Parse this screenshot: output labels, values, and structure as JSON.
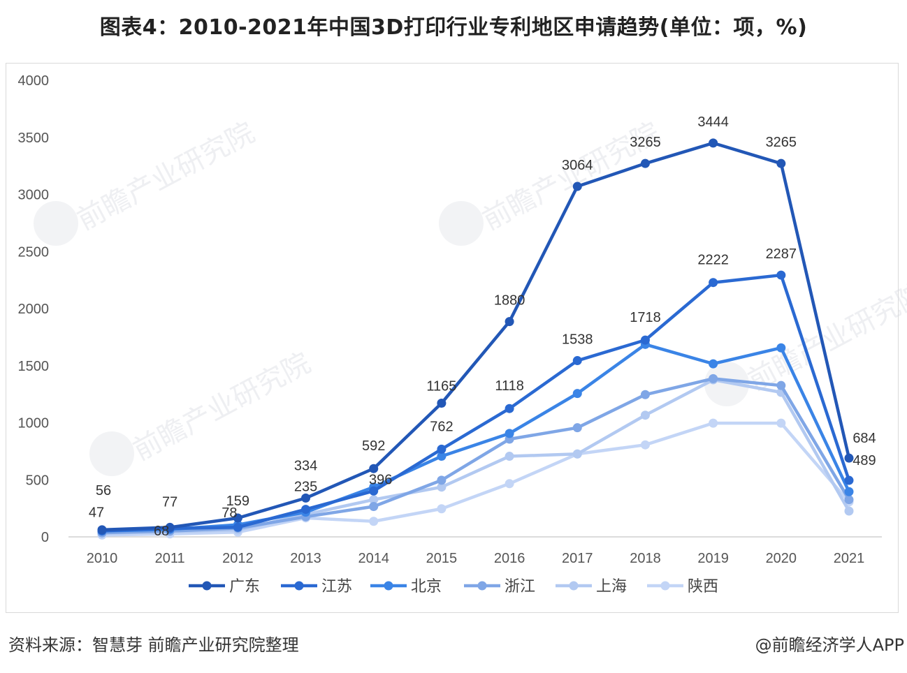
{
  "title": "图表4：2010-2021年中国3D打印行业专利地区申请趋势(单位：项，%)",
  "source": "资料来源：智慧芽 前瞻产业研究院整理",
  "credit": "@前瞻经济学人APP",
  "watermark": "前瞻产业研究院",
  "chart_data": {
    "type": "line",
    "title": "图表4：2010-2021年中国3D打印行业专利地区申请趋势(单位：项，%)",
    "xlabel": "",
    "ylabel": "",
    "x": [
      "2010",
      "2011",
      "2012",
      "2013",
      "2014",
      "2015",
      "2016",
      "2017",
      "2018",
      "2019",
      "2020",
      "2021"
    ],
    "ylim": [
      0,
      4000
    ],
    "yticks": [
      "0",
      "500",
      "1000",
      "1500",
      "2000",
      "2500",
      "3000",
      "3500",
      "4000"
    ],
    "grid": false,
    "legend": "bottom",
    "series": [
      {
        "name": "广东",
        "color": "#2257b6",
        "values": [
          56,
          77,
          159,
          334,
          592,
          1165,
          1880,
          3064,
          3265,
          3444,
          3265,
          684
        ],
        "labels": [
          "56",
          "77",
          "159",
          "334",
          "592",
          "1165",
          "1880",
          "3064",
          "3265",
          "3444",
          "3265",
          "684"
        ]
      },
      {
        "name": "江苏",
        "color": "#2a69d2",
        "values": [
          47,
          68,
          78,
          235,
          396,
          762,
          1118,
          1538,
          1718,
          2222,
          2287,
          489
        ],
        "labels": [
          "47",
          "68",
          "78",
          "235",
          "396",
          "762",
          "1118",
          "1538",
          "1718",
          "2222",
          "2287",
          "489"
        ]
      },
      {
        "name": "北京",
        "color": "#3a84e6",
        "values": [
          45,
          60,
          100,
          210,
          430,
          700,
          900,
          1250,
          1680,
          1510,
          1650,
          390
        ],
        "labels": []
      },
      {
        "name": "浙江",
        "color": "#7fa6e6",
        "values": [
          30,
          45,
          70,
          170,
          260,
          490,
          850,
          950,
          1240,
          1380,
          1320,
          320
        ],
        "labels": []
      },
      {
        "name": "上海",
        "color": "#b2c9f1",
        "values": [
          25,
          40,
          55,
          190,
          320,
          430,
          700,
          720,
          1060,
          1370,
          1260,
          220
        ],
        "labels": []
      },
      {
        "name": "陕西",
        "color": "#c3d5f6",
        "values": [
          10,
          20,
          35,
          160,
          130,
          240,
          460,
          720,
          800,
          990,
          990,
          300
        ],
        "labels": []
      }
    ]
  }
}
